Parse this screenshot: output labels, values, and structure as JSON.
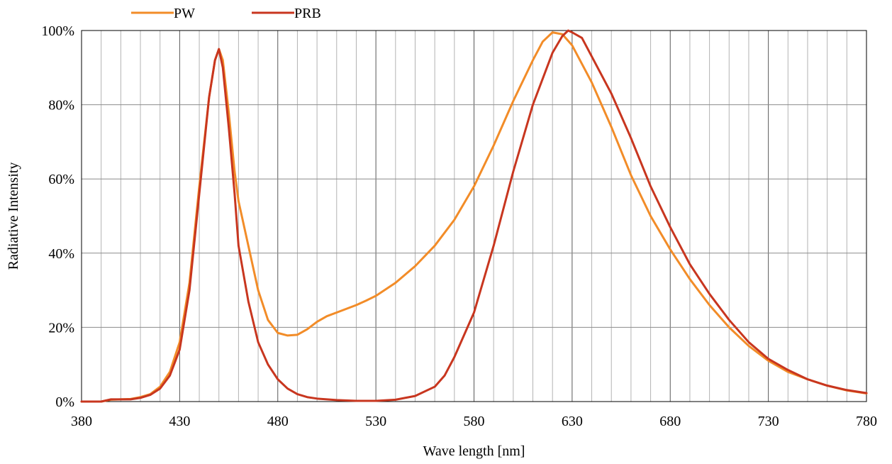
{
  "chart_data": {
    "type": "line",
    "title": "",
    "xlabel": "Wave length [nm]",
    "ylabel": "Radiative Intensity",
    "xlim": [
      380,
      780
    ],
    "ylim": [
      0,
      100
    ],
    "x_major_step": 50,
    "x_minor_step": 10,
    "y_step": 20,
    "x_ticks": [
      "380",
      "430",
      "480",
      "530",
      "580",
      "630",
      "680",
      "730",
      "780"
    ],
    "y_ticks": [
      "0%",
      "20%",
      "40%",
      "60%",
      "80%",
      "100%"
    ],
    "grid": true,
    "legend": "top-left",
    "series": [
      {
        "name": "PW",
        "color": "#F28C28",
        "points": [
          [
            380,
            0
          ],
          [
            390,
            0
          ],
          [
            395,
            0.5
          ],
          [
            400,
            0.6
          ],
          [
            405,
            0.7
          ],
          [
            410,
            1.2
          ],
          [
            415,
            2
          ],
          [
            420,
            4
          ],
          [
            425,
            8
          ],
          [
            430,
            16
          ],
          [
            435,
            32
          ],
          [
            440,
            58
          ],
          [
            445,
            82
          ],
          [
            448,
            92
          ],
          [
            450,
            95
          ],
          [
            452,
            92
          ],
          [
            455,
            78
          ],
          [
            458,
            62
          ],
          [
            460,
            54
          ],
          [
            465,
            42
          ],
          [
            470,
            30
          ],
          [
            475,
            22
          ],
          [
            480,
            18.5
          ],
          [
            485,
            17.8
          ],
          [
            490,
            18
          ],
          [
            495,
            19.5
          ],
          [
            500,
            21.5
          ],
          [
            505,
            23
          ],
          [
            510,
            24
          ],
          [
            515,
            25
          ],
          [
            520,
            26
          ],
          [
            525,
            27.2
          ],
          [
            530,
            28.5
          ],
          [
            540,
            32
          ],
          [
            550,
            36.5
          ],
          [
            560,
            42
          ],
          [
            570,
            49
          ],
          [
            580,
            58
          ],
          [
            590,
            69
          ],
          [
            600,
            81
          ],
          [
            610,
            92
          ],
          [
            615,
            97
          ],
          [
            620,
            99.5
          ],
          [
            625,
            99
          ],
          [
            630,
            96
          ],
          [
            640,
            86
          ],
          [
            650,
            74
          ],
          [
            660,
            61
          ],
          [
            670,
            50
          ],
          [
            680,
            41
          ],
          [
            690,
            33
          ],
          [
            700,
            26
          ],
          [
            710,
            20
          ],
          [
            720,
            15
          ],
          [
            730,
            11
          ],
          [
            740,
            8
          ],
          [
            750,
            6
          ],
          [
            760,
            4.3
          ],
          [
            770,
            3
          ],
          [
            780,
            2.2
          ]
        ]
      },
      {
        "name": "PRB",
        "color": "#C8361F",
        "points": [
          [
            380,
            0
          ],
          [
            390,
            0
          ],
          [
            395,
            0.6
          ],
          [
            400,
            0.6
          ],
          [
            405,
            0.6
          ],
          [
            410,
            1
          ],
          [
            415,
            1.8
          ],
          [
            420,
            3.5
          ],
          [
            425,
            7
          ],
          [
            430,
            14
          ],
          [
            435,
            30
          ],
          [
            440,
            56
          ],
          [
            445,
            82
          ],
          [
            448,
            92
          ],
          [
            450,
            95
          ],
          [
            452,
            90
          ],
          [
            455,
            74
          ],
          [
            458,
            56
          ],
          [
            460,
            42
          ],
          [
            465,
            27
          ],
          [
            470,
            16
          ],
          [
            475,
            10
          ],
          [
            480,
            6
          ],
          [
            485,
            3.5
          ],
          [
            490,
            2
          ],
          [
            495,
            1.2
          ],
          [
            500,
            0.8
          ],
          [
            510,
            0.4
          ],
          [
            520,
            0.2
          ],
          [
            530,
            0.2
          ],
          [
            540,
            0.5
          ],
          [
            550,
            1.5
          ],
          [
            560,
            4
          ],
          [
            565,
            7
          ],
          [
            570,
            12
          ],
          [
            575,
            18
          ],
          [
            580,
            24
          ],
          [
            590,
            42
          ],
          [
            600,
            62
          ],
          [
            610,
            80
          ],
          [
            620,
            94
          ],
          [
            625,
            98.5
          ],
          [
            628,
            100
          ],
          [
            630,
            99.5
          ],
          [
            635,
            98
          ],
          [
            640,
            93
          ],
          [
            650,
            83
          ],
          [
            660,
            71
          ],
          [
            670,
            58
          ],
          [
            680,
            47
          ],
          [
            690,
            37
          ],
          [
            700,
            29
          ],
          [
            710,
            22
          ],
          [
            720,
            16
          ],
          [
            730,
            11.5
          ],
          [
            740,
            8.5
          ],
          [
            750,
            6
          ],
          [
            760,
            4.3
          ],
          [
            770,
            3.1
          ],
          [
            780,
            2.3
          ]
        ]
      }
    ]
  }
}
